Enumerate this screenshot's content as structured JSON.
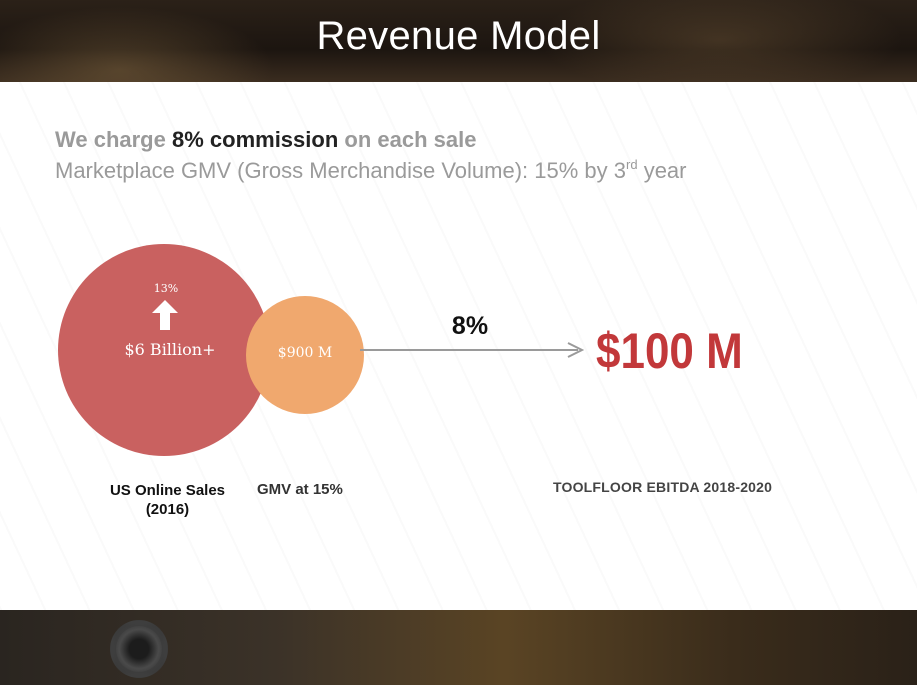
{
  "slide": {
    "title": "Revenue Model"
  },
  "intro": {
    "line1_part1": "We charge ",
    "line1_bold": "8% commission",
    "line1_part2": " on each sale",
    "line2_part1": "Marketplace GMV (Gross Merchandise Volume): 15% by 3",
    "line2_sup": "rd",
    "line2_part2": " year"
  },
  "diagram": {
    "big_circle_growth": "13%",
    "big_circle_value": "$6 Billion+",
    "small_circle_value": "$900 M",
    "arrow_label": "8%",
    "result_value": "$100 M",
    "caption_us_line1": "US Online Sales",
    "caption_us_line2": "(2016)",
    "caption_gmv": "GMV at 15%",
    "caption_result": "TOOLFLOOR EBITDA 2018-2020",
    "colors": {
      "big_circle": "#c96160",
      "small_circle": "#f0a86e",
      "result_text": "#c2383a",
      "arrow": "#9a9a9a"
    },
    "icons": [
      "up-arrow-icon",
      "right-arrow-icon"
    ]
  }
}
